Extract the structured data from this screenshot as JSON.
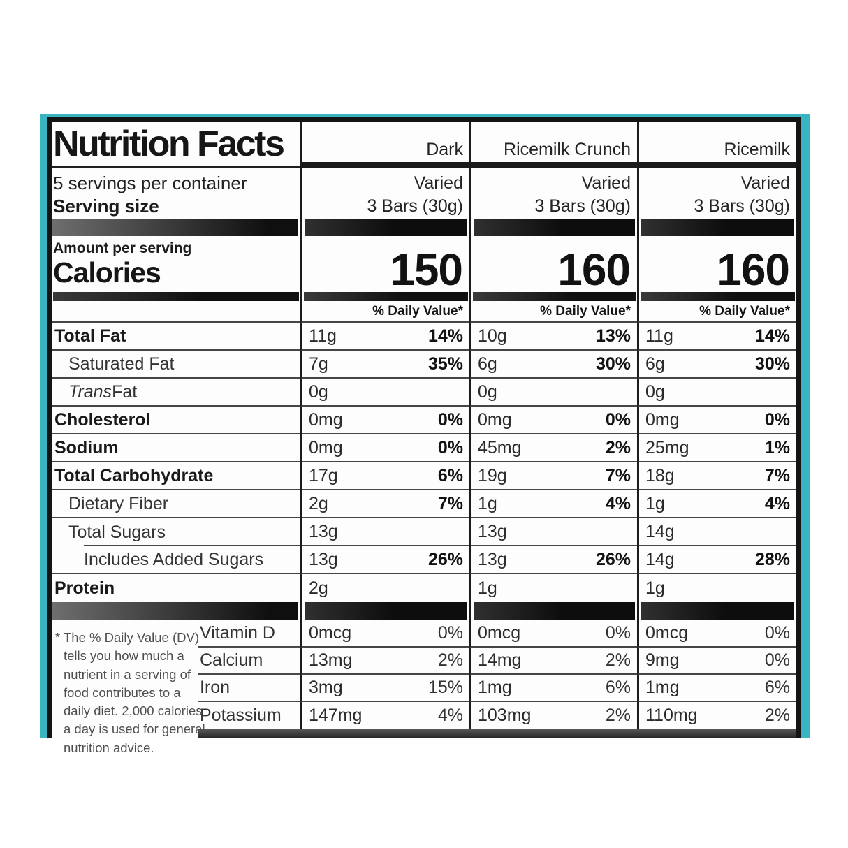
{
  "label": {
    "accent_color": "#3ab4c2",
    "title": "Nutrition Facts",
    "servings_per_container": "5 servings per container",
    "serving_size_label": "Serving size",
    "amount_per_serving_label": "Amount per serving",
    "calories_label": "Calories",
    "daily_value_header": "% Daily Value*",
    "footnote": "* The % Daily Value (DV) tells you how much a nutrient in a serving of food contributes to a daily diet. 2,000 calories a day is used for general nutrition advice."
  },
  "nutrient_rows": [
    {
      "label": "Total Fat"
    },
    {
      "label": "Saturated Fat"
    },
    {
      "label_italic": "Trans",
      "label": " Fat"
    },
    {
      "label": "Cholesterol"
    },
    {
      "label": "Sodium"
    },
    {
      "label": "Total Carbohydrate"
    },
    {
      "label": "Dietary Fiber"
    },
    {
      "label": "Total Sugars"
    },
    {
      "label": "Includes Added Sugars"
    },
    {
      "label": "Protein"
    }
  ],
  "vitamin_rows": [
    {
      "label": "Vitamin D"
    },
    {
      "label": "Calcium"
    },
    {
      "label": "Iron"
    },
    {
      "label": "Potassium"
    }
  ],
  "columns": [
    {
      "name": "Dark",
      "varied": "Varied",
      "serving_size": "3 Bars (30g)",
      "calories": "150",
      "nutrients": [
        {
          "amount": "11g",
          "dv": "14%"
        },
        {
          "amount": "7g",
          "dv": "35%"
        },
        {
          "amount": "0g",
          "dv": ""
        },
        {
          "amount": "0mg",
          "dv": "0%"
        },
        {
          "amount": "0mg",
          "dv": "0%"
        },
        {
          "amount": "17g",
          "dv": "6%"
        },
        {
          "amount": "2g",
          "dv": "7%"
        },
        {
          "amount": "13g",
          "dv": ""
        },
        {
          "amount": "13g",
          "dv": "26%"
        },
        {
          "amount": "2g",
          "dv": ""
        }
      ],
      "vitamins": [
        {
          "amount": "0mcg",
          "dv": "0%"
        },
        {
          "amount": "13mg",
          "dv": "2%"
        },
        {
          "amount": "3mg",
          "dv": "15%"
        },
        {
          "amount": "147mg",
          "dv": "4%"
        }
      ]
    },
    {
      "name": "Ricemilk Crunch",
      "varied": "Varied",
      "serving_size": "3 Bars (30g)",
      "calories": "160",
      "nutrients": [
        {
          "amount": "10g",
          "dv": "13%"
        },
        {
          "amount": "6g",
          "dv": "30%"
        },
        {
          "amount": "0g",
          "dv": ""
        },
        {
          "amount": "0mg",
          "dv": "0%"
        },
        {
          "amount": "45mg",
          "dv": "2%"
        },
        {
          "amount": "19g",
          "dv": "7%"
        },
        {
          "amount": "1g",
          "dv": "4%"
        },
        {
          "amount": "13g",
          "dv": ""
        },
        {
          "amount": "13g",
          "dv": "26%"
        },
        {
          "amount": "1g",
          "dv": ""
        }
      ],
      "vitamins": [
        {
          "amount": "0mcg",
          "dv": "0%"
        },
        {
          "amount": "14mg",
          "dv": "2%"
        },
        {
          "amount": "1mg",
          "dv": "6%"
        },
        {
          "amount": "103mg",
          "dv": "2%"
        }
      ]
    },
    {
      "name": "Ricemilk",
      "varied": "Varied",
      "serving_size": "3 Bars (30g)",
      "calories": "160",
      "nutrients": [
        {
          "amount": "11g",
          "dv": "14%"
        },
        {
          "amount": "6g",
          "dv": "30%"
        },
        {
          "amount": "0g",
          "dv": ""
        },
        {
          "amount": "0mg",
          "dv": "0%"
        },
        {
          "amount": "25mg",
          "dv": "1%"
        },
        {
          "amount": "18g",
          "dv": "7%"
        },
        {
          "amount": "1g",
          "dv": "4%"
        },
        {
          "amount": "14g",
          "dv": ""
        },
        {
          "amount": "14g",
          "dv": "28%"
        },
        {
          "amount": "1g",
          "dv": ""
        }
      ],
      "vitamins": [
        {
          "amount": "0mcg",
          "dv": "0%"
        },
        {
          "amount": "9mg",
          "dv": "0%"
        },
        {
          "amount": "1mg",
          "dv": "6%"
        },
        {
          "amount": "110mg",
          "dv": "2%"
        }
      ]
    }
  ]
}
